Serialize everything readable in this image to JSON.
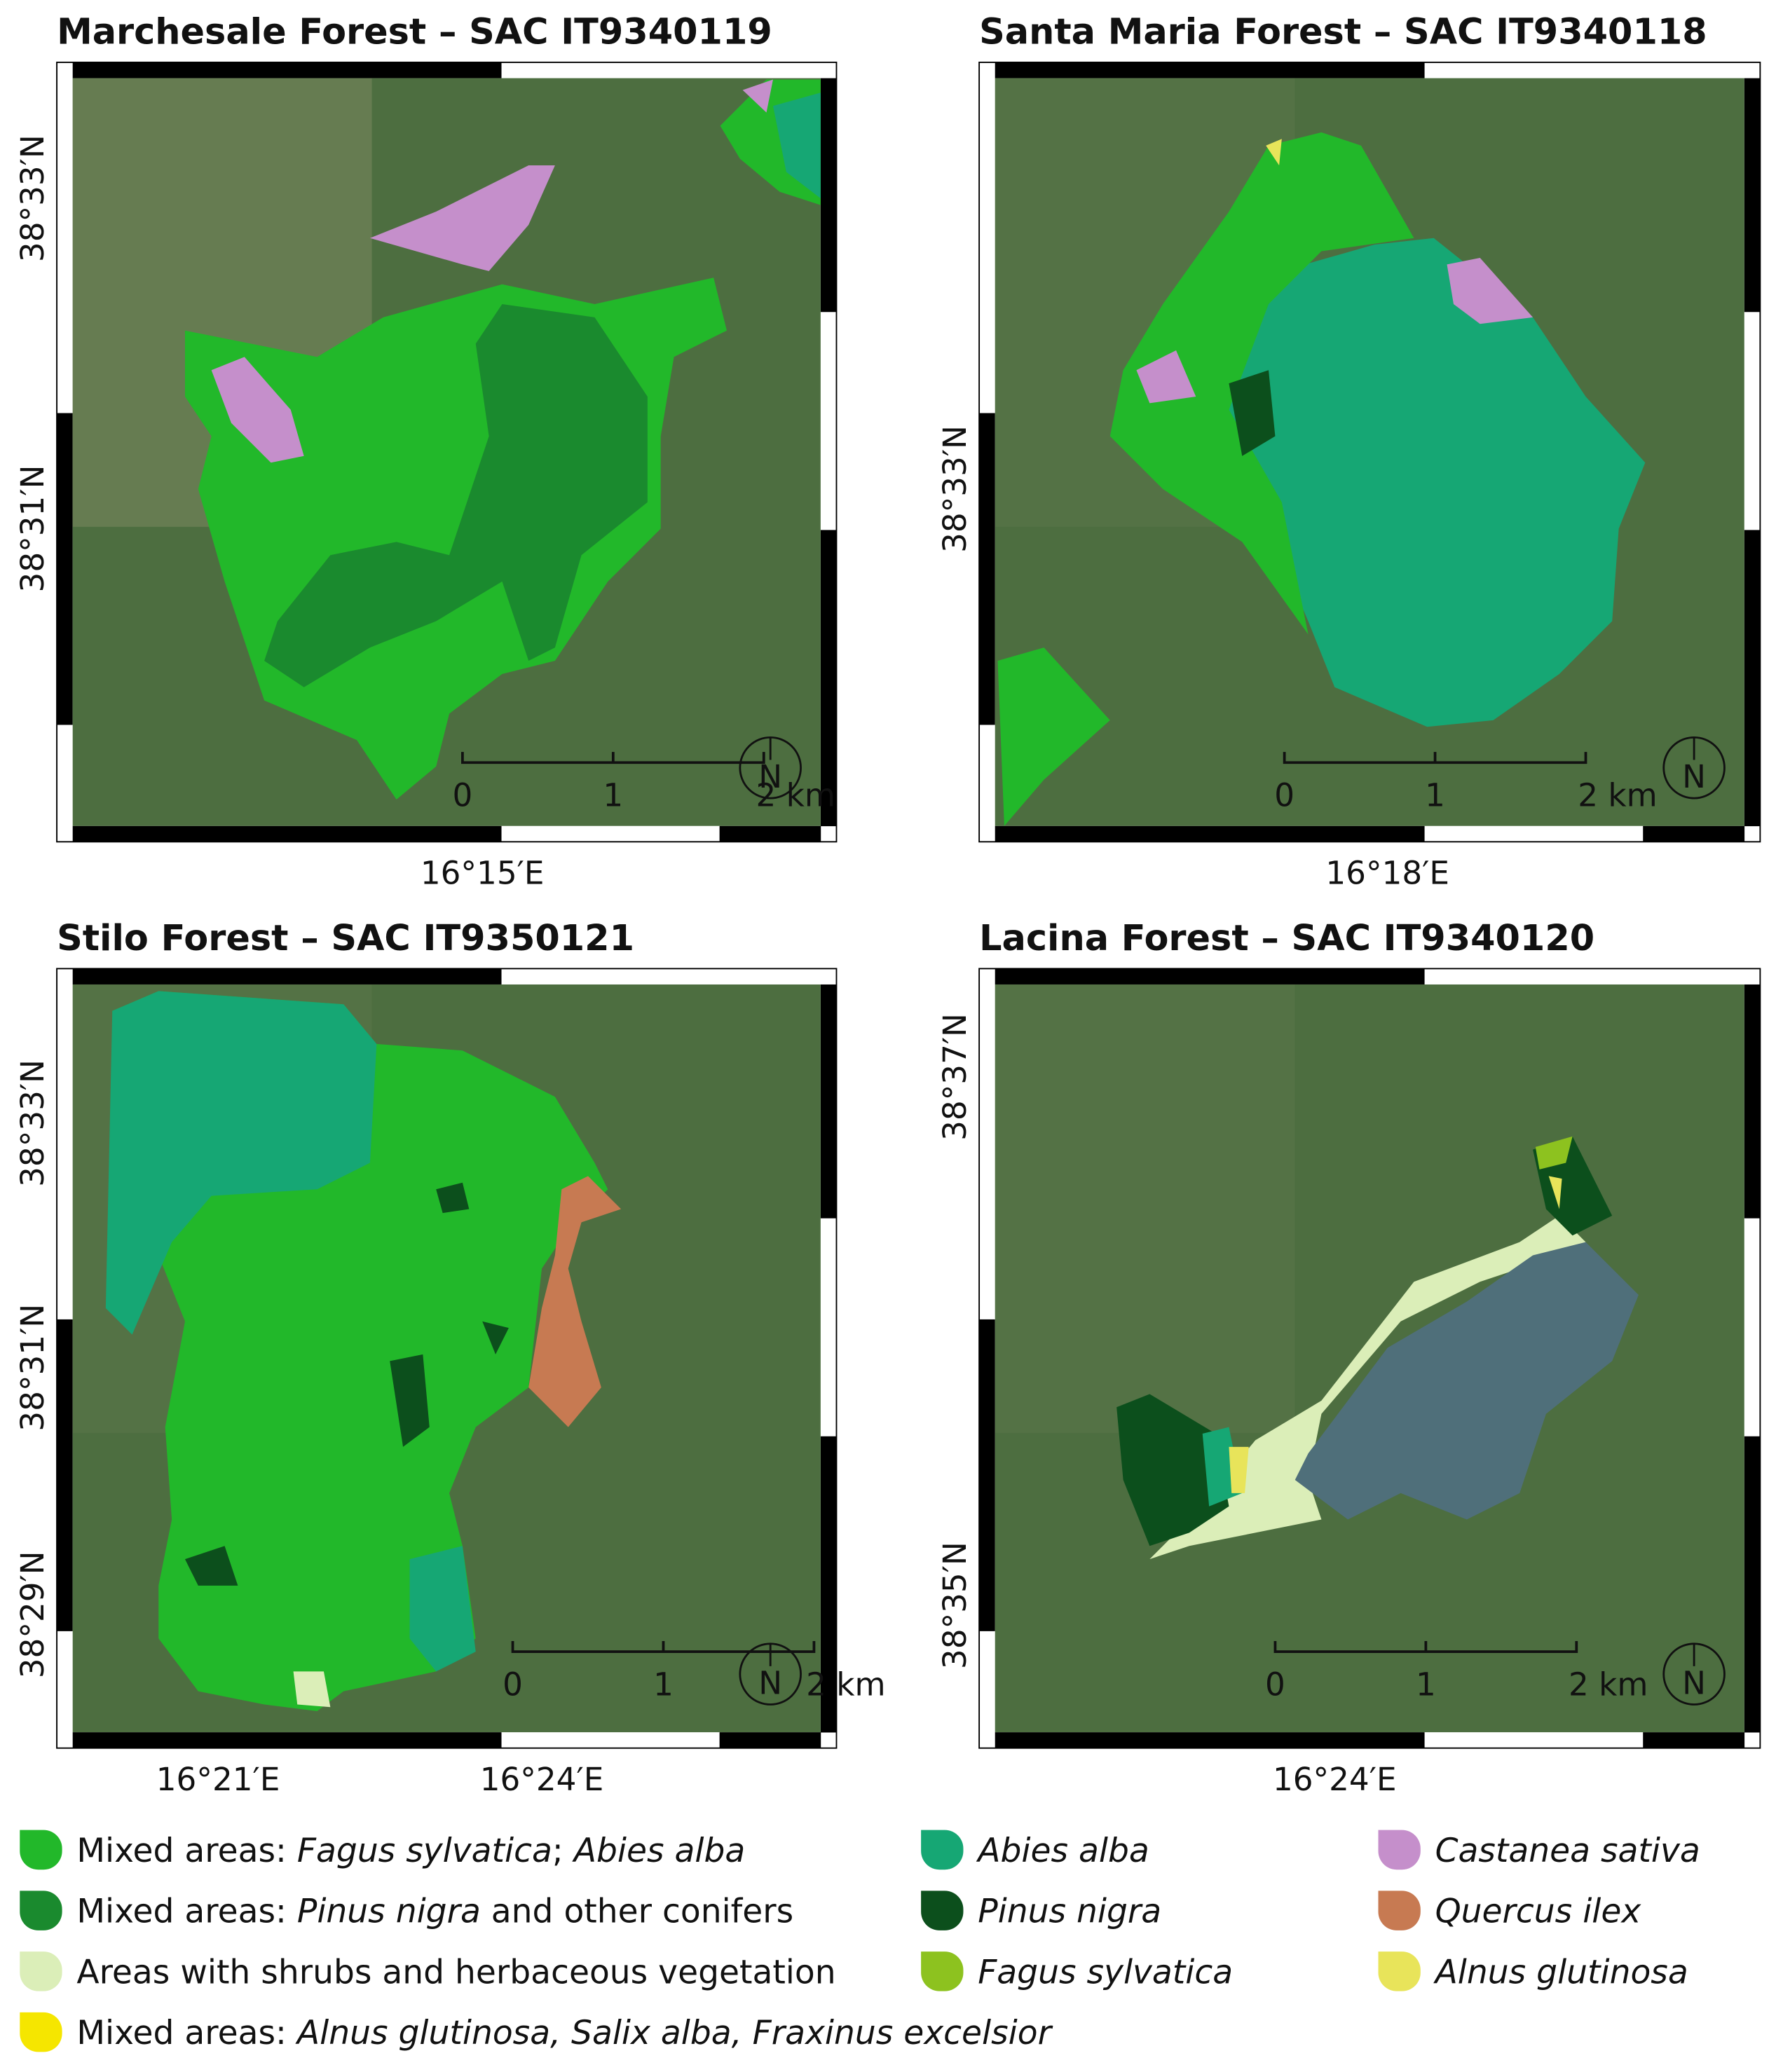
{
  "maps": [
    {
      "title": "Marchesale Forest – SAC IT9340119",
      "lat_labels": [
        "38°33′N",
        "38°31′N"
      ],
      "lon_labels": [
        "16°15′E"
      ]
    },
    {
      "title": "Santa Maria Forest – SAC IT9340118",
      "lat_labels": [
        "38°33′N"
      ],
      "lon_labels": [
        "16°18′E"
      ]
    },
    {
      "title": "Stilo Forest – SAC IT9350121",
      "lat_labels": [
        "38°33′N",
        "38°31′N",
        "38°29′N"
      ],
      "lon_labels": [
        "16°21′E",
        "16°24′E"
      ]
    },
    {
      "title": "Lacina Forest – SAC IT9340120",
      "lat_labels": [
        "38°37′N",
        "38°35′N"
      ],
      "lon_labels": [
        "16°24′E"
      ]
    }
  ],
  "scale_labels": [
    "0",
    "1",
    "2 km"
  ],
  "north_label": "N",
  "legend": [
    {
      "color": "#22b82a",
      "parts": [
        {
          "text": "Mixed areas: "
        },
        {
          "text": "Fagus sylvatica",
          "italic": true
        },
        {
          "text": "; "
        },
        {
          "text": "Abies alba",
          "italic": true
        }
      ]
    },
    {
      "color": "#1a8a2e",
      "parts": [
        {
          "text": "Mixed areas: "
        },
        {
          "text": "Pinus nigra",
          "italic": true
        },
        {
          "text": " and other conifers"
        }
      ]
    },
    {
      "color": "#dbeeb8",
      "parts": [
        {
          "text": "Areas with shrubs and herbaceous vegetation"
        }
      ]
    },
    {
      "color": "#f5e600",
      "parts": [
        {
          "text": "Mixed areas: "
        },
        {
          "text": "Alnus glutinosa, Salix alba, Fraxinus excelsior",
          "italic": true
        }
      ]
    },
    {
      "color": "#16a774",
      "parts": [
        {
          "text": "Abies alba",
          "italic": true
        }
      ]
    },
    {
      "color": "#0c4f1c",
      "parts": [
        {
          "text": "Pinus nigra",
          "italic": true
        }
      ]
    },
    {
      "color": "#8dc21f",
      "parts": [
        {
          "text": "Fagus sylvatica",
          "italic": true
        }
      ]
    },
    {
      "color": "#c58fcb",
      "parts": [
        {
          "text": "Castanea sativa",
          "italic": true
        }
      ]
    },
    {
      "color": "#c77a52",
      "parts": [
        {
          "text": "Quercus ilex",
          "italic": true
        }
      ]
    },
    {
      "color": "#e8e45a",
      "parts": [
        {
          "text": "Alnus glutinosa",
          "italic": true
        }
      ]
    }
  ]
}
